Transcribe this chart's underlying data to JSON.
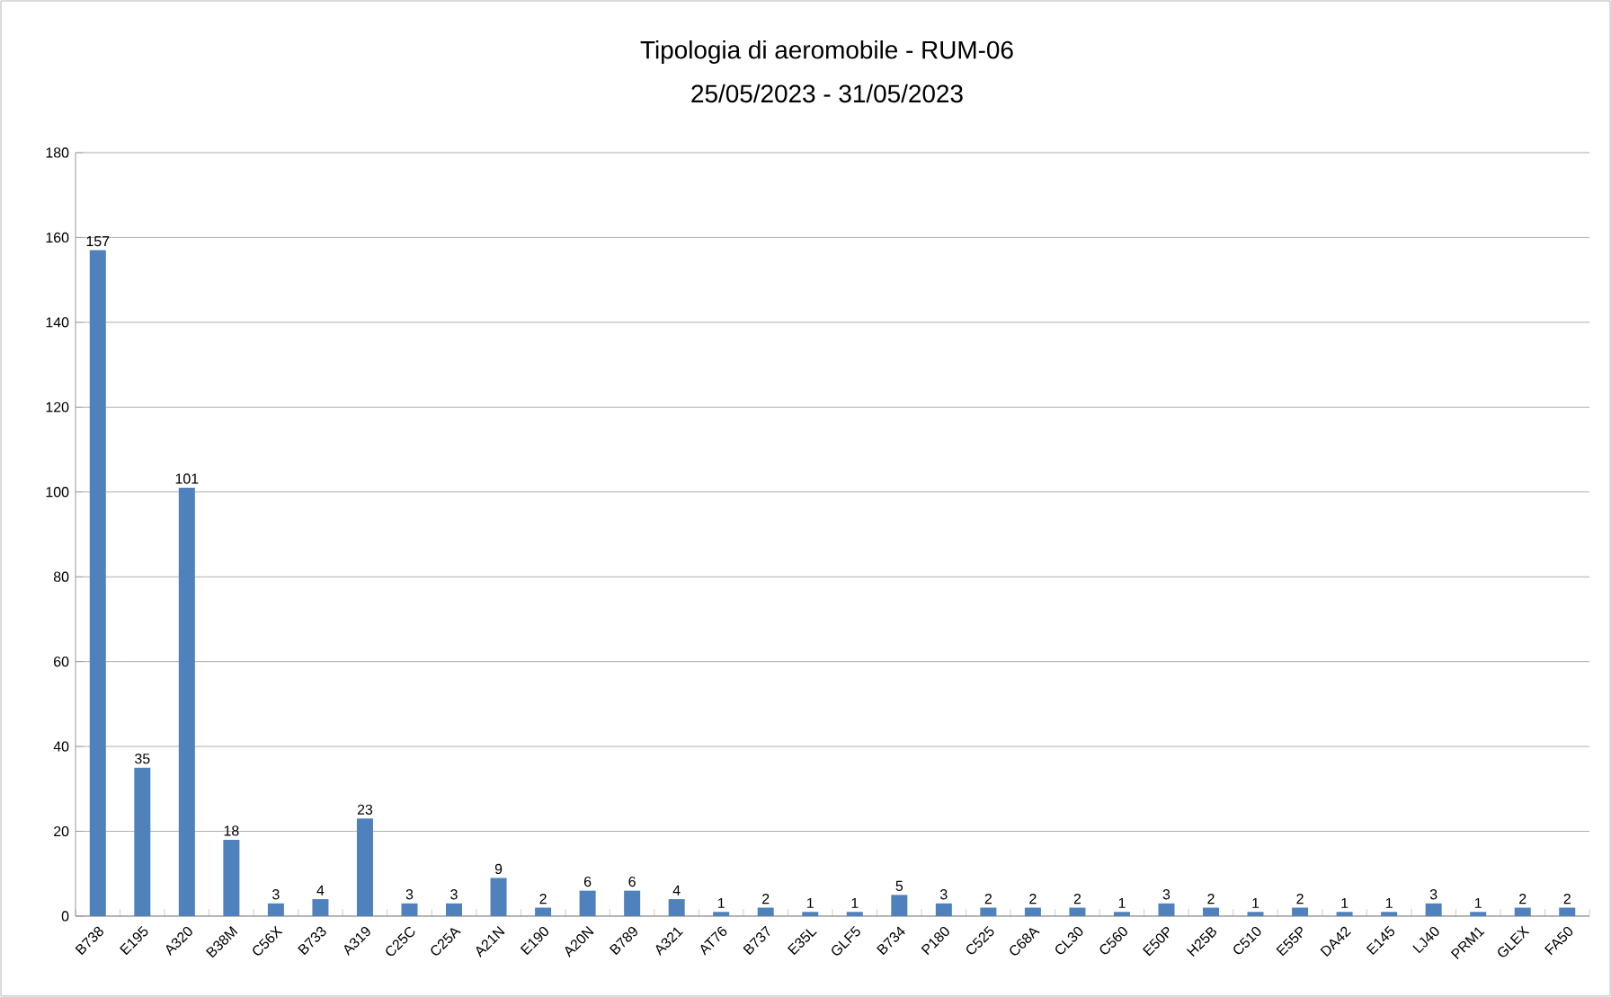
{
  "chart_data": {
    "type": "bar",
    "title": "Tipologia di aeromobile - RUM-06",
    "subtitle": "25/05/2023  - 31/05/2023",
    "categories": [
      "B738",
      "E195",
      "A320",
      "B38M",
      "C56X",
      "B733",
      "A319",
      "C25C",
      "C25A",
      "A21N",
      "E190",
      "A20N",
      "B789",
      "A321",
      "AT76",
      "B737",
      "E35L",
      "GLF5",
      "B734",
      "P180",
      "C525",
      "C68A",
      "CL30",
      "C560",
      "E50P",
      "H25B",
      "C510",
      "E55P",
      "DA42",
      "E145",
      "LJ40",
      "PRM1",
      "GLEX",
      "FA50"
    ],
    "values": [
      157,
      35,
      101,
      18,
      3,
      4,
      23,
      3,
      3,
      9,
      2,
      6,
      6,
      4,
      1,
      2,
      1,
      1,
      5,
      3,
      2,
      2,
      2,
      1,
      3,
      2,
      1,
      2,
      1,
      1,
      3,
      1,
      2,
      2
    ],
    "color": "#4f81bd",
    "ylim": [
      0,
      180
    ],
    "yticks": [
      0,
      20,
      40,
      60,
      80,
      100,
      120,
      140,
      160,
      180
    ],
    "grid": "y",
    "data_labels": true
  }
}
